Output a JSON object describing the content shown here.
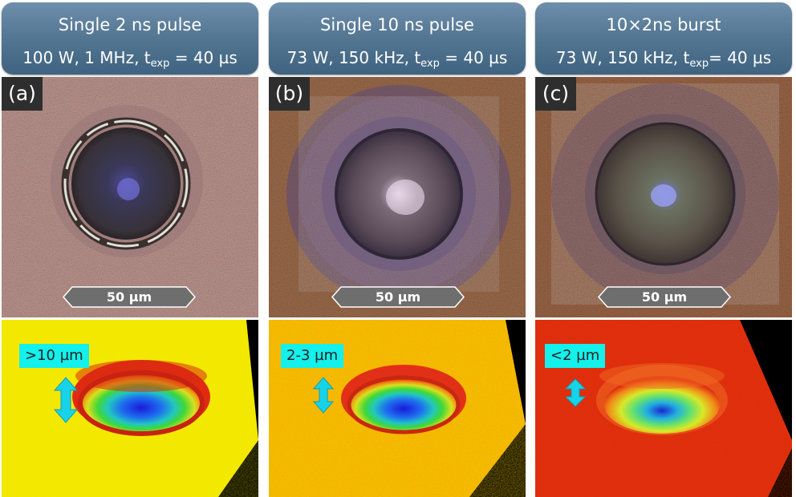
{
  "panels": [
    {
      "tag": "(a)",
      "title": "Single 2 ns pulse",
      "params_main": "100 W, 1 MHz, t",
      "params_sub": "exp",
      "params_end": " = 40 µs",
      "scale_label": "50 µm",
      "depth_label": ">10 µm"
    },
    {
      "tag": "(b)",
      "title": "Single 10 ns pulse",
      "params_main": "73 W, 150 kHz, t",
      "params_sub": "exp",
      "params_end": " = 40 µs",
      "scale_label": "50 µm",
      "depth_label": "2-3 µm"
    },
    {
      "tag": "(c)",
      "title": "10×2ns burst",
      "params_main": "73 W, 150 kHz, t",
      "params_sub": "exp",
      "params_end": "= 40 µs",
      "scale_label": "50 µm",
      "depth_label": "<2 µm"
    }
  ],
  "colors": {
    "header_top": "#6f8fac",
    "header_bottom": "#3f6380",
    "label_bg": "#14f0ec",
    "arrow": "#17d3ea",
    "surface_a": "#f2e600",
    "surface_b": "#f0b000",
    "surface_c": "#e02a10"
  }
}
